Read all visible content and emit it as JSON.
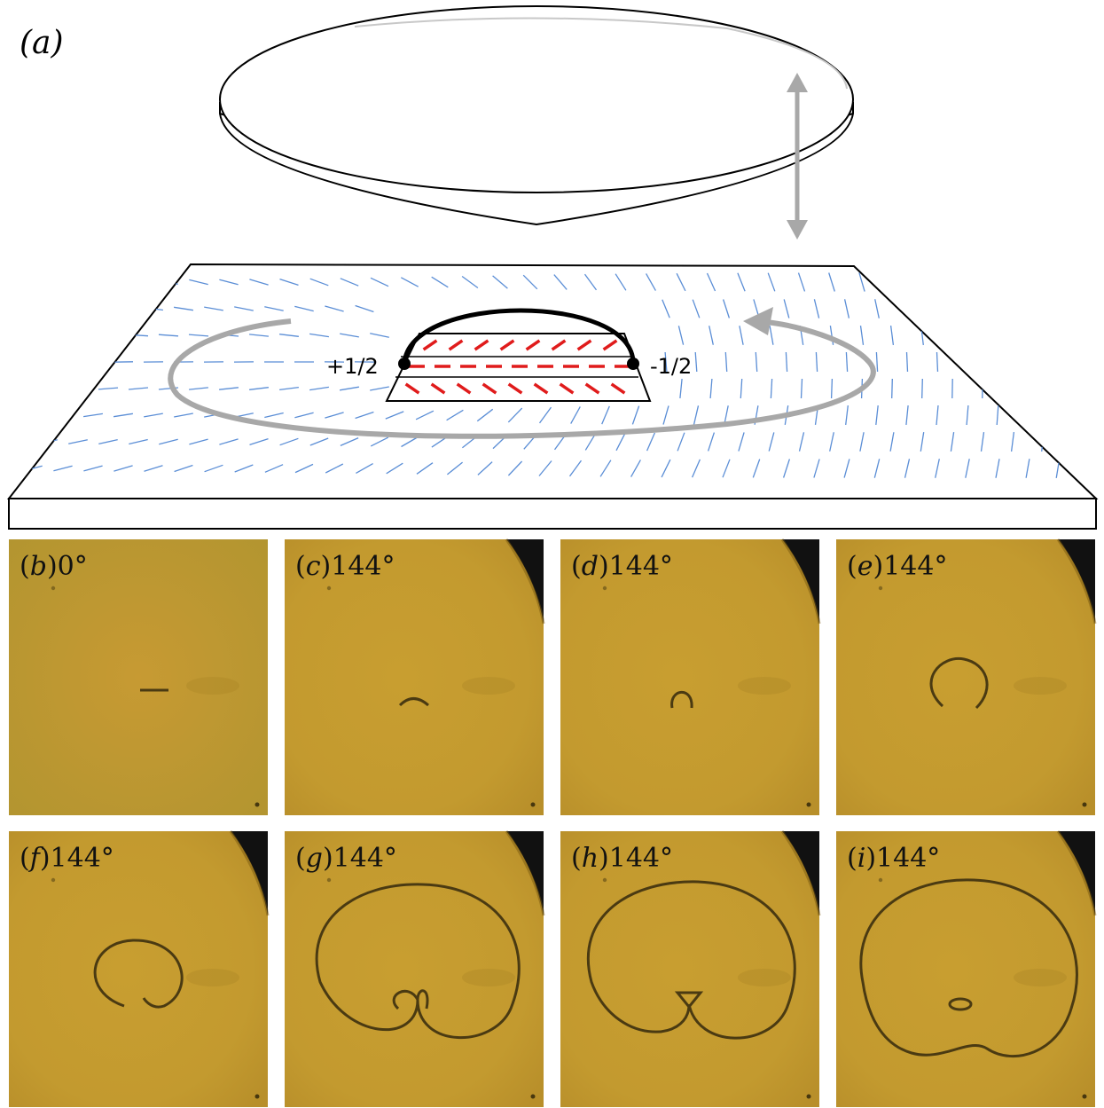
{
  "figure": {
    "panel_a": {
      "label": "(a)",
      "defect_plus": "+1/2",
      "defect_minus": "-1/2"
    },
    "micrographs": [
      {
        "letter": "b",
        "angle": "0°",
        "loop": "none"
      },
      {
        "letter": "c",
        "angle": "144°",
        "loop": "line-arc"
      },
      {
        "letter": "d",
        "angle": "144°",
        "loop": "small-arc"
      },
      {
        "letter": "e",
        "angle": "144°",
        "loop": "open-loop"
      },
      {
        "letter": "f",
        "angle": "144°",
        "loop": "kidney"
      },
      {
        "letter": "g",
        "angle": "144°",
        "loop": "heart-open"
      },
      {
        "letter": "h",
        "angle": "144°",
        "loop": "heart-pinch"
      },
      {
        "letter": "i",
        "angle": "144°",
        "loop": "heart-closed"
      }
    ]
  },
  "colors": {
    "micrograph_bg": "#c49a2e",
    "director_lines": "#5b8ed6",
    "director_red": "#e01b1b",
    "arrow_gray": "#a8a8a8",
    "dark_corner": "#111111"
  }
}
